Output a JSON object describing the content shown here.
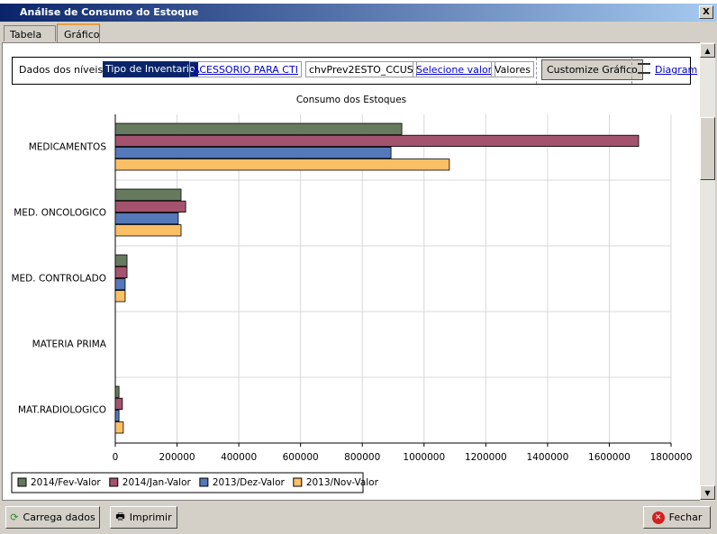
{
  "window": {
    "title": "Análise de Consumo do Estoque",
    "close": "X",
    "tabs": [
      "Tabela",
      "Gráfico"
    ],
    "toolbar": {
      "label": "Dados dos níveis:",
      "level1": "Tipo de Inventario",
      "level1_value": "ACESSORIO PARA CTI",
      "level2": "chvPrev2ESTO_CCUS",
      "level2_value": "Selecione valor",
      "values": "Valores",
      "customize": "Customize Gráfico",
      "diagram": "Diagram"
    },
    "buttons": [
      "Carrega dados",
      "Imprimir",
      "Fechar"
    ]
  },
  "chart_data": {
    "type": "hbar",
    "title": "Consumo dos Estoques",
    "categories": [
      "MEDICAMENTOS",
      "MED. ONCOLOGICO",
      "MED. CONTROLADO",
      "MATERIA PRIMA",
      "MAT.RADIOLOGICO"
    ],
    "series": [
      {
        "name": "2014/Fev-Valor",
        "color": "#667a5e",
        "values": [
          928000,
          213000,
          38000,
          0,
          12000
        ]
      },
      {
        "name": "2014/Jan-Valor",
        "color": "#a4536f",
        "values": [
          1695000,
          228000,
          38000,
          0,
          23000
        ]
      },
      {
        "name": "2013/Dez-Valor",
        "color": "#5578b8",
        "values": [
          893000,
          204000,
          32000,
          0,
          12000
        ]
      },
      {
        "name": "2013/Nov-Valor",
        "color": "#fbbf66",
        "values": [
          1082000,
          213000,
          32000,
          0,
          26000
        ]
      }
    ],
    "xlim": [
      0,
      1800000
    ],
    "xticks": [
      0,
      200000,
      400000,
      600000,
      800000,
      1000000,
      1200000,
      1400000,
      1600000,
      1800000
    ],
    "grid": true,
    "legend": "bottom-left"
  }
}
